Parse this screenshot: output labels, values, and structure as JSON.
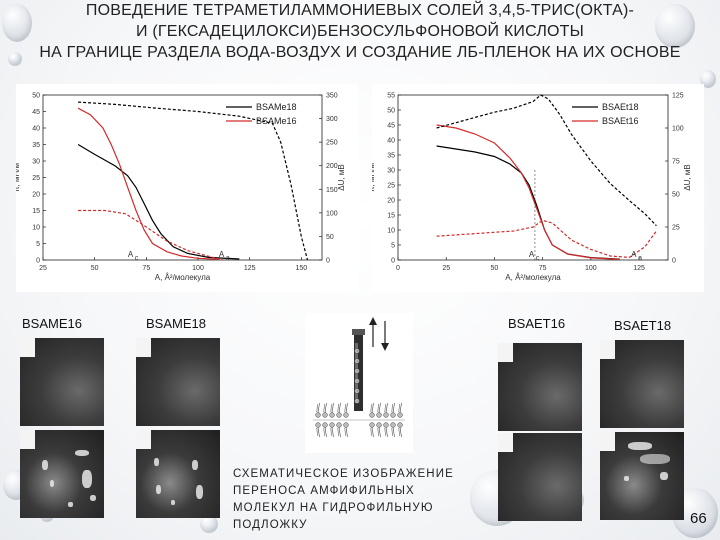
{
  "title": {
    "line1": "ПОВЕДЕНИЕ ТЕТРАМЕТИЛАММОНИЕВЫХ СОЛЕЙ 3,4,5-ТРИС(ОКТА)-",
    "line2": "И (ГЕКСАДЕЦИЛОКСИ)БЕНЗОСУЛЬФОНОВОЙ КИСЛОТЫ",
    "line3": "НА ГРАНИЦЕ РАЗДЕЛА ВОДА-ВОЗДУХ И СОЗДАНИЕ ЛБ-ПЛЕНОК НА ИХ ОСНОВЕ"
  },
  "chart_data": [
    {
      "type": "line",
      "xlabel": "A, Å²/молекула",
      "ylabel": "π, мН/м",
      "y2label": "ΔU, мВ",
      "xlim": [
        25,
        160
      ],
      "ylim": [
        0,
        50
      ],
      "y2lim": [
        0,
        350
      ],
      "xticks": [
        "25",
        "50",
        "75",
        "100",
        "125",
        "150"
      ],
      "yticks": [
        "0",
        "5",
        "10",
        "15",
        "20",
        "25",
        "30",
        "35",
        "40",
        "45",
        "50"
      ],
      "y2ticks": [
        "0",
        "50",
        "100",
        "150",
        "200",
        "250",
        "300",
        "350"
      ],
      "annotations": [
        "A",
        "c",
        "A",
        "a"
      ],
      "legend_position": "top-right",
      "series": [
        {
          "name": "BSAMe18",
          "color": "#000000",
          "style": "solid",
          "axis": "left",
          "x": [
            42,
            50,
            60,
            66,
            70,
            74,
            78,
            82,
            88,
            95,
            105,
            120
          ],
          "y": [
            35,
            32,
            28.5,
            25.5,
            22,
            17,
            12,
            8,
            4,
            2,
            0.8,
            0.3
          ]
        },
        {
          "name": "BSAMe16",
          "color": "#d42a2a",
          "style": "solid",
          "axis": "left",
          "x": [
            42,
            48,
            54,
            58,
            62,
            66,
            70,
            74,
            78,
            85,
            92,
            100,
            110
          ],
          "y": [
            46,
            44,
            40,
            35,
            29,
            22,
            15,
            9,
            5,
            2.5,
            1.2,
            0.5,
            0.2
          ]
        },
        {
          "name": "",
          "color": "#000000",
          "style": "dashed",
          "axis": "right",
          "x": [
            42,
            60,
            80,
            100,
            120,
            136,
            140,
            145,
            150,
            153
          ],
          "y": [
            335,
            330,
            322,
            315,
            305,
            290,
            250,
            160,
            50,
            0
          ]
        },
        {
          "name": "",
          "color": "#d42a2a",
          "style": "dashed",
          "axis": "right",
          "x": [
            42,
            55,
            65,
            75,
            85,
            95,
            105,
            112
          ],
          "y": [
            105,
            105,
            98,
            70,
            40,
            20,
            8,
            0
          ]
        }
      ]
    },
    {
      "type": "line",
      "xlabel": "A, Å²/молекула",
      "ylabel": "π, мН/м",
      "y2label": "ΔU, мВ",
      "xlim": [
        0,
        140
      ],
      "ylim": [
        0,
        55
      ],
      "y2lim": [
        0,
        125
      ],
      "xticks": [
        "0",
        "25",
        "50",
        "75",
        "100",
        "125"
      ],
      "yticks": [
        "0",
        "5",
        "10",
        "15",
        "20",
        "25",
        "30",
        "35",
        "40",
        "45",
        "50",
        "55"
      ],
      "y2ticks": [
        "0",
        "25",
        "50",
        "75",
        "100",
        "125"
      ],
      "annotations": [
        "A",
        "c",
        "A",
        "a"
      ],
      "legend_position": "top-right",
      "series": [
        {
          "name": "BSAEt18",
          "color": "#000000",
          "style": "solid",
          "axis": "left",
          "x": [
            20,
            30,
            40,
            50,
            58,
            64,
            68,
            72,
            76,
            80,
            88,
            100,
            115
          ],
          "y": [
            38,
            37,
            36,
            34.5,
            32,
            29,
            25,
            18,
            10,
            5,
            2,
            0.8,
            0.3
          ]
        },
        {
          "name": "BSAEt16",
          "color": "#d42a2a",
          "style": "solid",
          "axis": "left",
          "x": [
            20,
            30,
            40,
            50,
            58,
            64,
            68,
            72,
            76,
            80,
            88,
            100,
            115
          ],
          "y": [
            45,
            44,
            42,
            39,
            34,
            29,
            24,
            17,
            10,
            5,
            2,
            0.7,
            0.2
          ]
        },
        {
          "name": "",
          "color": "#000000",
          "style": "dashed",
          "axis": "right",
          "x": [
            20,
            30,
            40,
            50,
            60,
            70,
            74,
            78,
            84,
            90,
            100,
            110,
            120,
            128,
            134
          ],
          "y": [
            100,
            104,
            108,
            112,
            115,
            120,
            125,
            122,
            110,
            95,
            75,
            58,
            45,
            35,
            26
          ]
        },
        {
          "name": "",
          "color": "#d42a2a",
          "style": "dashed",
          "axis": "right",
          "x": [
            20,
            40,
            60,
            70,
            75,
            80,
            90,
            100,
            110,
            120,
            128,
            134
          ],
          "y": [
            18,
            20,
            22,
            25,
            30,
            28,
            15,
            8,
            3,
            2,
            10,
            22
          ]
        }
      ]
    }
  ],
  "samples": {
    "bsame16": "BSAME16",
    "bsame18": "BSAME18",
    "bsaet16": "BSAET16",
    "bsaet18": "BSAET18"
  },
  "caption": {
    "line1": "СХЕМАТИЧЕСКОЕ ИЗОБРАЖЕНИЕ",
    "line2": "ПЕРЕНОСА АМФИФИЛЬНЫХ",
    "line3": "МОЛЕКУЛ НА ГИДРОФИЛЬНУЮ",
    "line4": "ПОДЛОЖКУ"
  },
  "page_number": "66"
}
